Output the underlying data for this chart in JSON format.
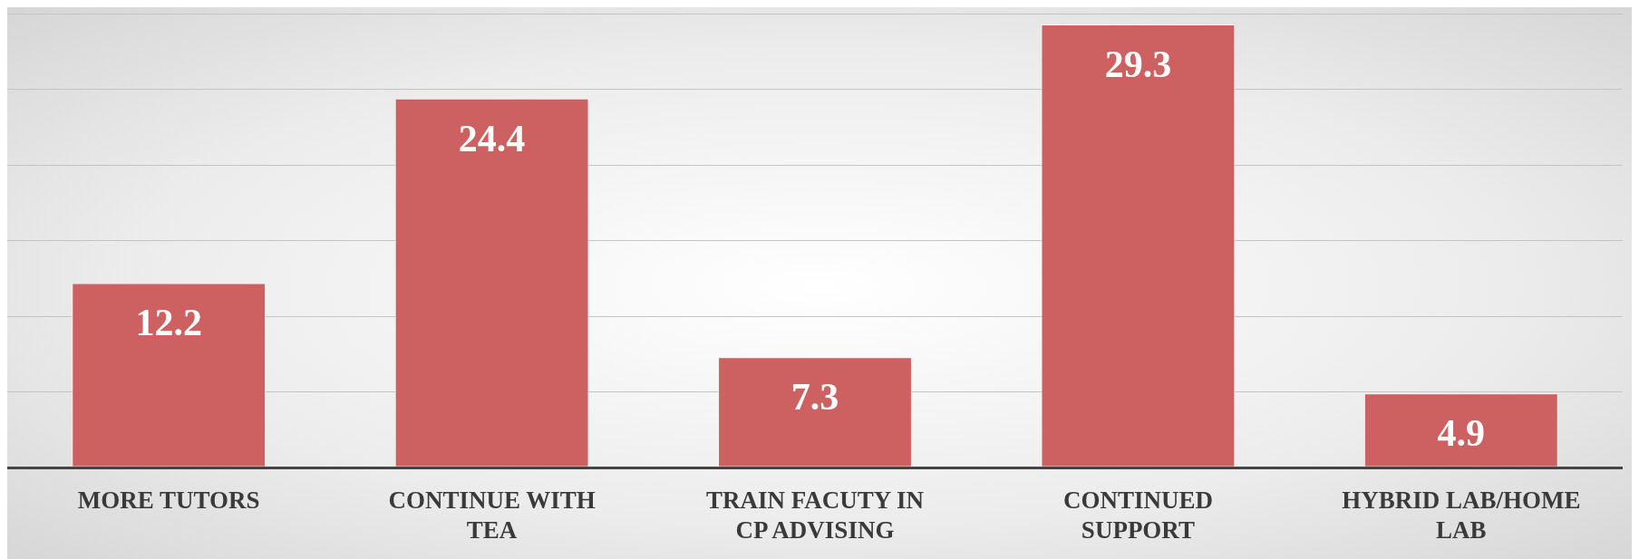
{
  "chart_data": {
    "type": "bar",
    "categories": [
      "MORE TUTORS",
      "CONTINUE WITH TEA",
      "TRAIN FACUTY IN CP ADVISING",
      "CONTINUED SUPPORT",
      "HYBRID LAB/HOME LAB"
    ],
    "values": [
      12.2,
      24.4,
      7.3,
      29.3,
      4.9
    ],
    "color": "#cd6060",
    "ylim": [
      0,
      30
    ],
    "yticks": [
      {
        "value": 0,
        "label": null
      },
      {
        "value": 5,
        "label": null
      },
      {
        "value": 10,
        "label": null
      },
      {
        "value": 15,
        "label": null
      },
      {
        "value": 20,
        "label": null
      },
      {
        "value": 25,
        "label": null
      },
      {
        "value": 30,
        "label": null
      }
    ],
    "grid": "y",
    "data_labels": true
  }
}
